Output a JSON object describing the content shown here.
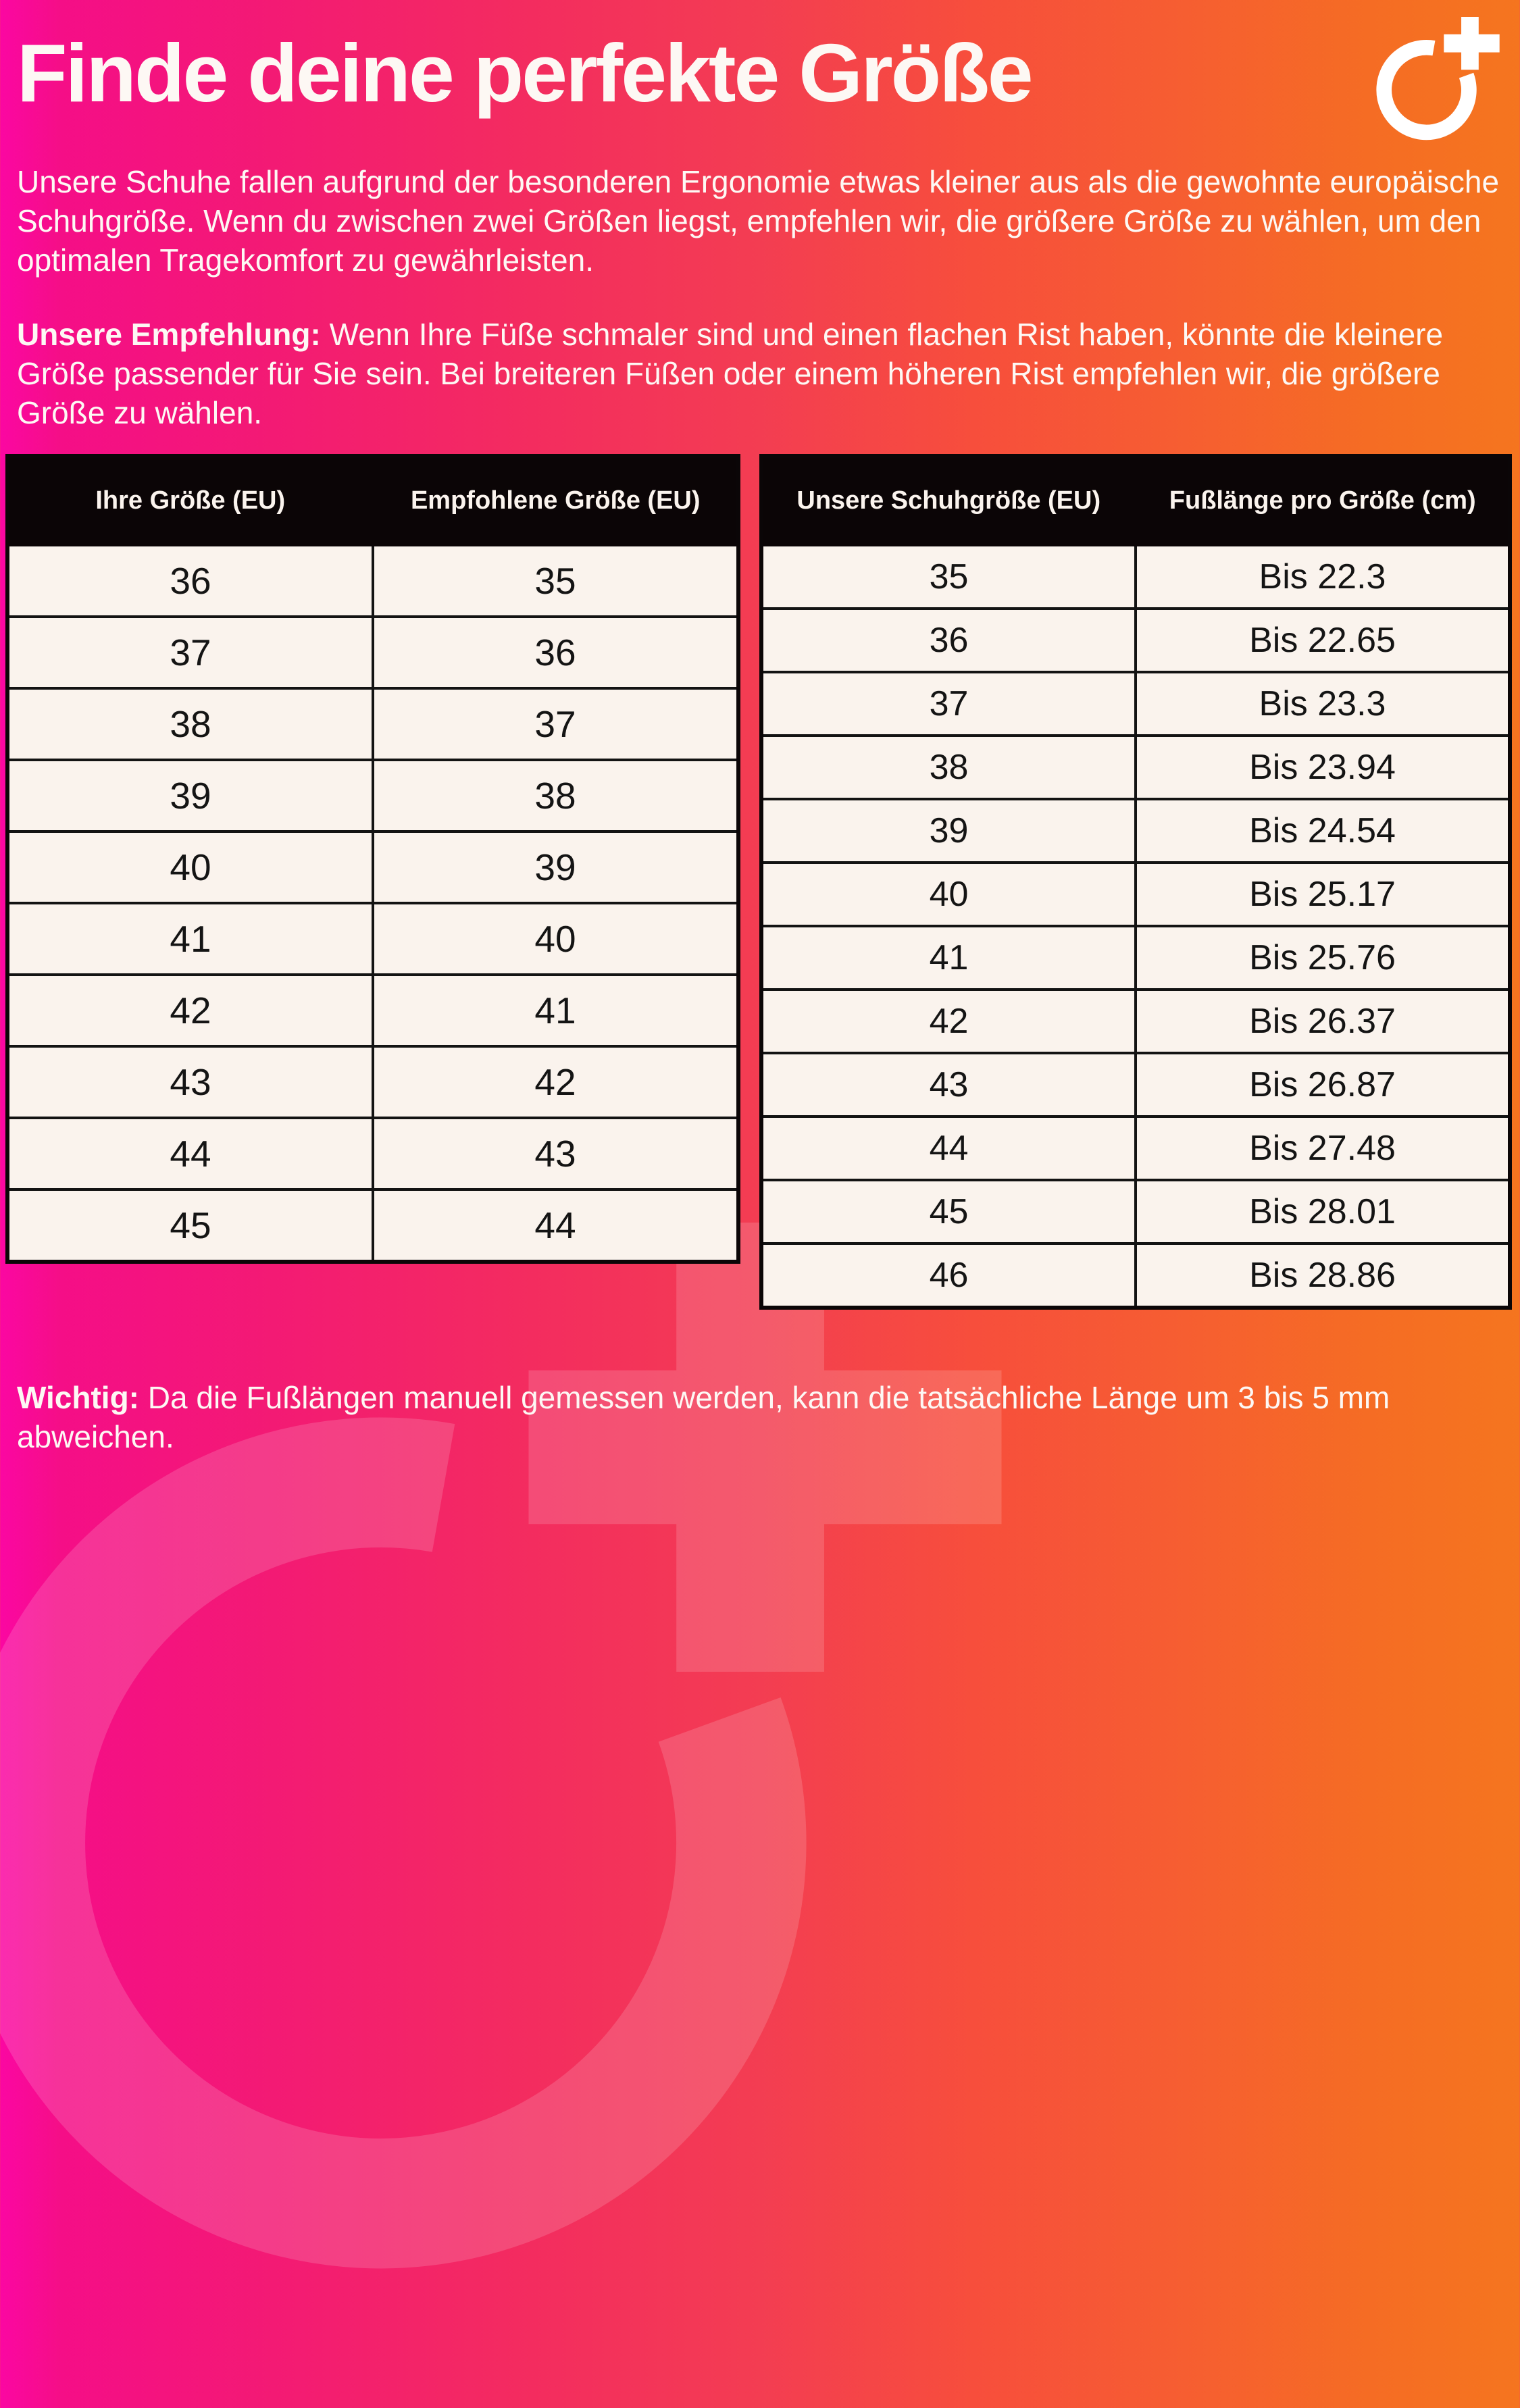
{
  "header": {
    "title": "Finde deine perfekte Größe",
    "logo_icon": "o-plus-logo"
  },
  "intro": {
    "text": "Unsere Schuhe fallen aufgrund der besonderen Ergonomie etwas kleiner aus als die gewohnte europäische Schuhgröße. Wenn du zwischen zwei Größen liegst, empfehlen wir, die größere Größe zu wählen, um den optimalen Tragekomfort zu gewährleisten."
  },
  "recommendation": {
    "label": "Unsere Empfehlung:",
    "text": " Wenn Ihre Füße schmaler sind und einen flachen Rist haben, könnte die kleinere Größe passender für Sie sein. Bei breiteren Füßen oder einem höheren Rist empfehlen wir, die größere Größe zu wählen."
  },
  "size_table": {
    "headers": [
      "Ihre Größe (EU)",
      "Empfohlene Größe (EU)"
    ],
    "rows": [
      [
        "36",
        "35"
      ],
      [
        "37",
        "36"
      ],
      [
        "38",
        "37"
      ],
      [
        "39",
        "38"
      ],
      [
        "40",
        "39"
      ],
      [
        "41",
        "40"
      ],
      [
        "42",
        "41"
      ],
      [
        "43",
        "42"
      ],
      [
        "44",
        "43"
      ],
      [
        "45",
        "44"
      ]
    ]
  },
  "length_table": {
    "headers": [
      "Unsere Schuhgröße (EU)",
      "Fußlänge pro Größe (cm)"
    ],
    "rows": [
      [
        "35",
        "Bis 22.3"
      ],
      [
        "36",
        "Bis 22.65"
      ],
      [
        "37",
        "Bis 23.3"
      ],
      [
        "38",
        "Bis 23.94"
      ],
      [
        "39",
        "Bis 24.54"
      ],
      [
        "40",
        "Bis 25.17"
      ],
      [
        "41",
        "Bis 25.76"
      ],
      [
        "42",
        "Bis 26.37"
      ],
      [
        "43",
        "Bis 26.87"
      ],
      [
        "44",
        "Bis 27.48"
      ],
      [
        "45",
        "Bis 28.01"
      ],
      [
        "46",
        "Bis 28.86"
      ]
    ]
  },
  "footer": {
    "label": "Wichtig:",
    "text": " Da die Fußlängen manuell gemessen werden, kann die tatsächliche Länge um 3 bis 5 mm abweichen."
  },
  "colors": {
    "gradient_start": "#fb07a2",
    "gradient_mid": "#f33d52",
    "gradient_end": "#f5751f",
    "table_header_bg": "#0b0506",
    "cell_bg": "#faf3ed",
    "text_light": "#fdf8f4",
    "text_dark": "#141414"
  }
}
